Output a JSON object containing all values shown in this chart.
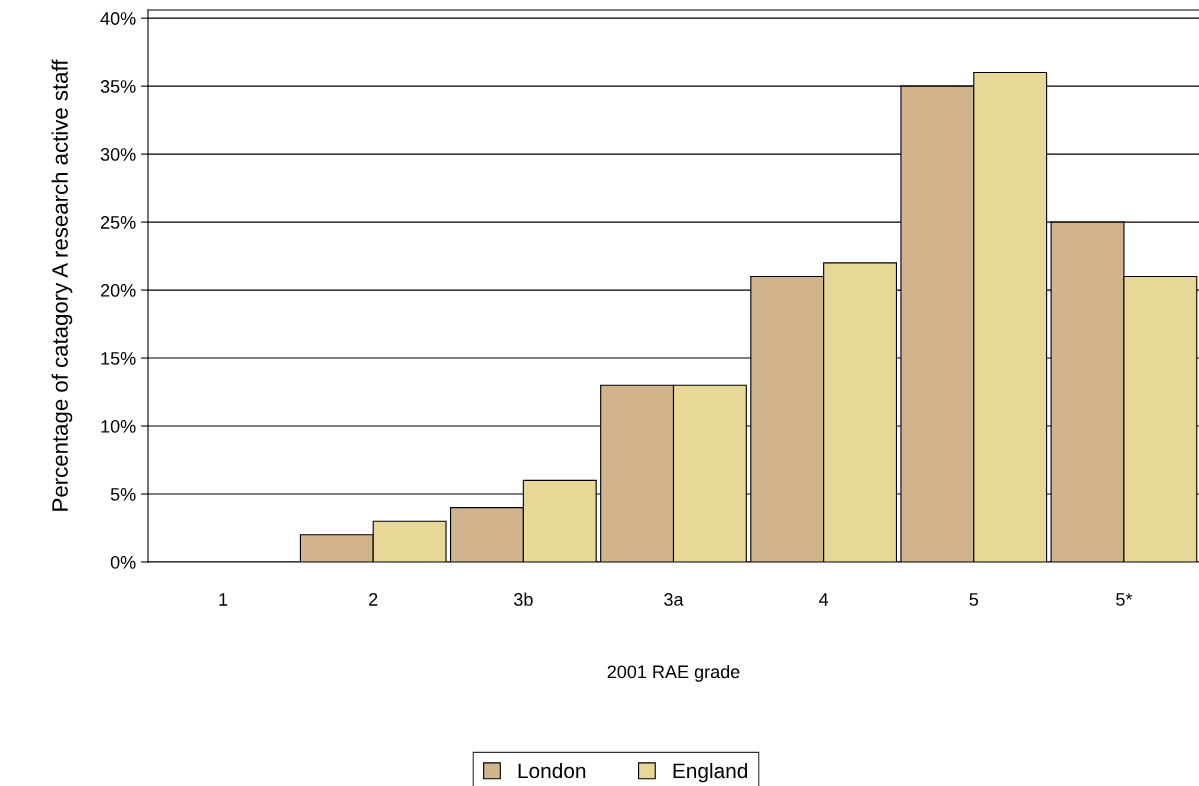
{
  "chart_data": {
    "type": "bar",
    "xlabel": "2001 RAE grade",
    "ylabel": "Percentage of catagory A research active staff",
    "categories": [
      "1",
      "2",
      "3b",
      "3a",
      "4",
      "5",
      "5*"
    ],
    "series": [
      {
        "name": "London",
        "color": "#d2b48c",
        "values": [
          null,
          2,
          4,
          13,
          21,
          35,
          25
        ]
      },
      {
        "name": "England",
        "color": "#e8d898",
        "values": [
          null,
          3,
          6,
          13,
          22,
          36,
          21
        ]
      }
    ],
    "ylim": [
      0,
      40.6
    ],
    "yticks": [
      {
        "value": 0,
        "label": "0%"
      },
      {
        "value": 5,
        "label": "5%"
      },
      {
        "value": 10,
        "label": "10%"
      },
      {
        "value": 15,
        "label": "15%"
      },
      {
        "value": 20,
        "label": "20%"
      },
      {
        "value": 25,
        "label": "25%"
      },
      {
        "value": 30,
        "label": "30%"
      },
      {
        "value": 35,
        "label": "35%"
      },
      {
        "value": 40,
        "label": "40%"
      }
    ],
    "grid": "y",
    "legend": "bottom"
  }
}
